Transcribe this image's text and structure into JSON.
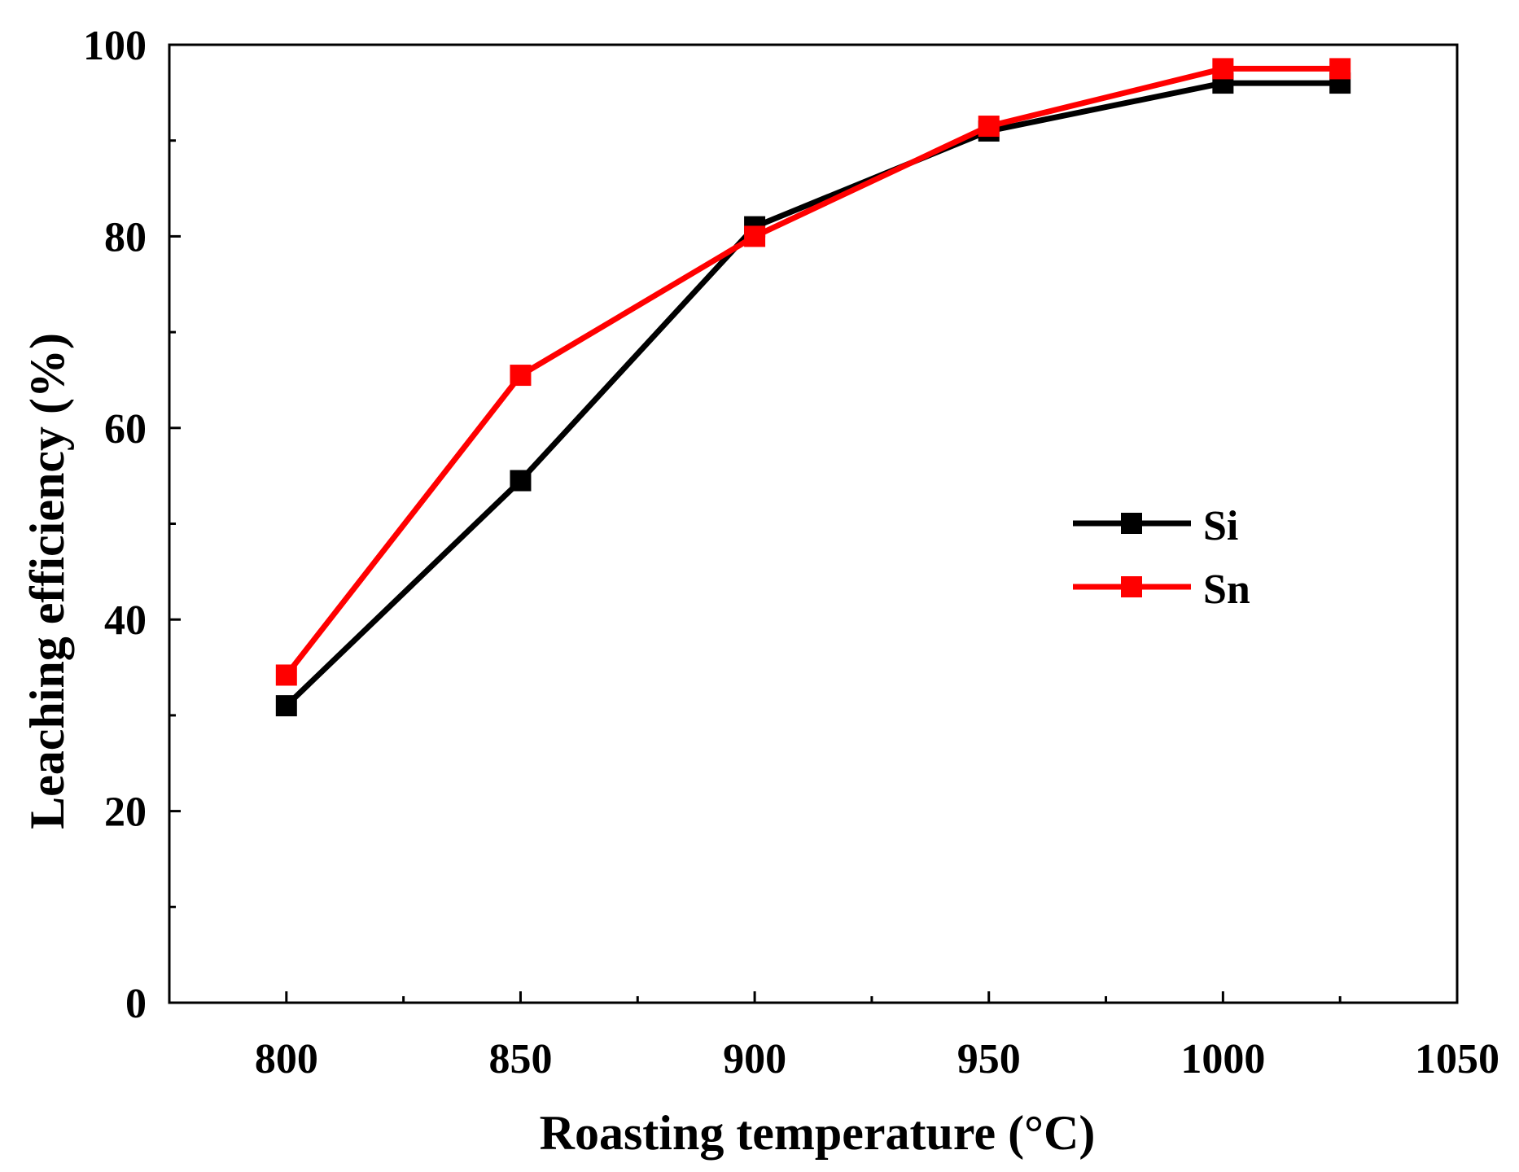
{
  "chart_data": {
    "type": "line",
    "title": "",
    "xlabel": "Roasting temperature (°C)",
    "ylabel": "Leaching  efficiency (%)",
    "xlim": [
      775,
      1050
    ],
    "ylim": [
      0,
      100
    ],
    "x_ticks": [
      800,
      850,
      900,
      950,
      1000,
      1050
    ],
    "x_tick_labels": [
      "800",
      "850",
      "900",
      "950",
      "1000",
      "1050"
    ],
    "x_minor_ticks": [
      825,
      875,
      925,
      975,
      1025
    ],
    "y_ticks": [
      0,
      20,
      40,
      60,
      80,
      100
    ],
    "y_tick_labels": [
      "0",
      "20",
      "40",
      "60",
      "80",
      "100"
    ],
    "y_minor_ticks": [
      10,
      30,
      50,
      70,
      90
    ],
    "x": [
      800,
      850,
      900,
      950,
      1000,
      1025
    ],
    "series": [
      {
        "name": "Si",
        "color": "#000000",
        "marker": "square",
        "values": [
          31,
          54.5,
          81,
          91,
          96,
          96
        ]
      },
      {
        "name": "Sn",
        "color": "#ff0000",
        "marker": "square",
        "values": [
          34.2,
          65.5,
          80,
          91.5,
          97.5,
          97.5
        ]
      }
    ],
    "legend_position": "center-right",
    "grid": false
  }
}
